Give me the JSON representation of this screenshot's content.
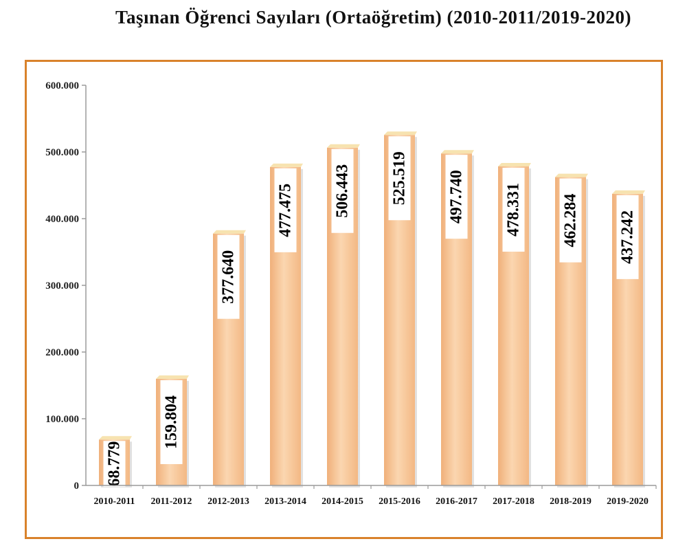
{
  "page": {
    "title": "Taşınan Öğrenci Sayıları (Ortaöğretim) (2010-2011/2019-2020)"
  },
  "colors": {
    "frame": "#d9822b",
    "bar": "#f5be8d",
    "bar_light": "#fbe0c4",
    "bar_top": "#f7e3b0",
    "label_bg": "#ffffff",
    "axis": "#9a9a9a"
  },
  "chart_data": {
    "type": "bar",
    "title": "Taşınan Öğrenci Sayıları (Ortaöğretim) (2010-2011/2019-2020)",
    "xlabel": "",
    "ylabel": "",
    "ylim": [
      0,
      600000
    ],
    "yticks": [
      0,
      100000,
      200000,
      300000,
      400000,
      500000,
      600000
    ],
    "ytick_labels": [
      "0",
      "100.000",
      "200.000",
      "300.000",
      "400.000",
      "500.000",
      "600.000"
    ],
    "grid": false,
    "legend": "none",
    "categories": [
      "2010-2011",
      "2011-2012",
      "2012-2013",
      "2013-2014",
      "2014-2015",
      "2015-2016",
      "2016-2017",
      "2017-2018",
      "2018-2019",
      "2019-2020"
    ],
    "values": [
      68779,
      159804,
      377640,
      477475,
      506443,
      525519,
      497740,
      478331,
      462284,
      437242
    ],
    "data_labels": [
      "68.779",
      "159.804",
      "377.640",
      "477.475",
      "506.443",
      "525.519",
      "497.740",
      "478.331",
      "462.284",
      "437.242"
    ]
  }
}
